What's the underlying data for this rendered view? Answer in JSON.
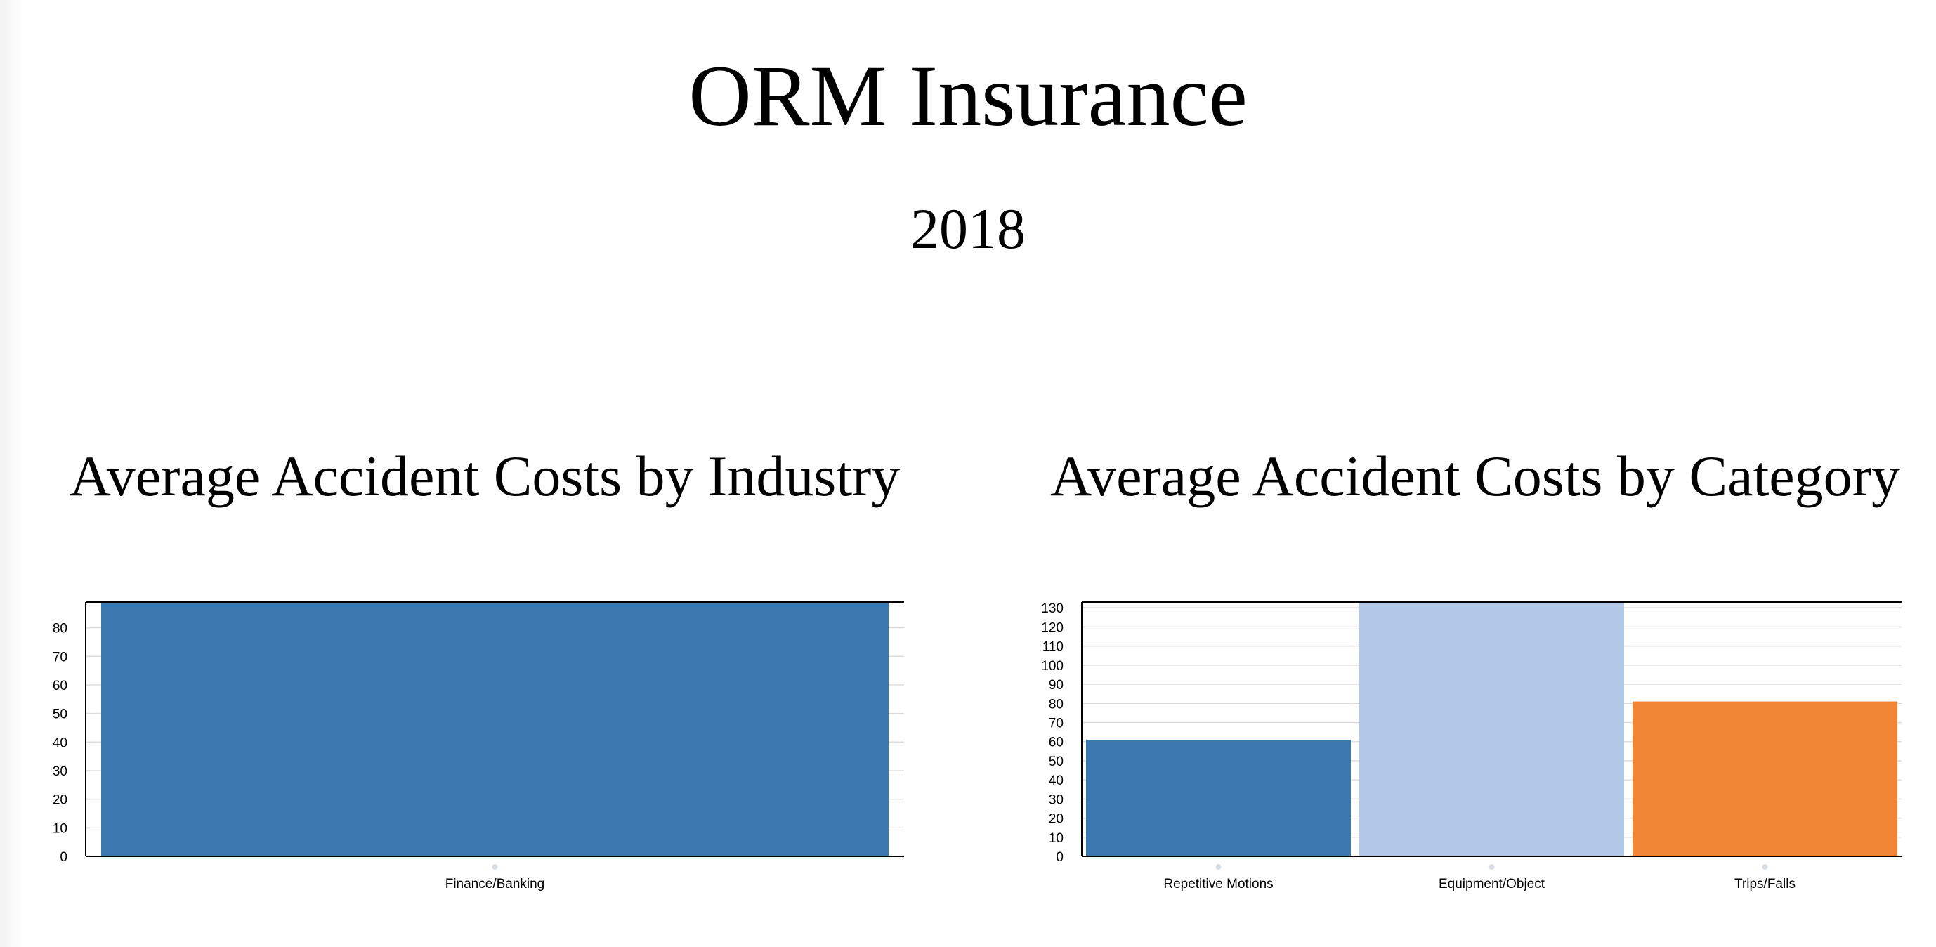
{
  "header": {
    "title": "ORM Insurance",
    "subtitle": "2018"
  },
  "chart_data": [
    {
      "type": "bar",
      "title": "Average Accident Costs by Industry",
      "xlabel": "",
      "ylabel": "",
      "categories": [
        "Finance/Banking"
      ],
      "values": [
        89
      ],
      "colors": [
        "#3b78b0"
      ],
      "ylim": [
        0,
        89
      ],
      "yticks": [
        0,
        10,
        20,
        30,
        40,
        50,
        60,
        70,
        80
      ],
      "grid": true,
      "legend": "none"
    },
    {
      "type": "bar",
      "title": "Average Accident Costs by Category",
      "xlabel": "",
      "ylabel": "",
      "categories": [
        "Repetitive Motions",
        "Equipment/Object",
        "Trips/Falls"
      ],
      "values": [
        61,
        133,
        81
      ],
      "colors": [
        "#3b78b0",
        "#b3c7e6",
        "#ef8535"
      ],
      "ylim": [
        0,
        133
      ],
      "yticks": [
        0,
        10,
        20,
        30,
        40,
        50,
        60,
        70,
        80,
        90,
        100,
        110,
        120,
        130
      ],
      "grid": true,
      "legend": "none"
    }
  ]
}
